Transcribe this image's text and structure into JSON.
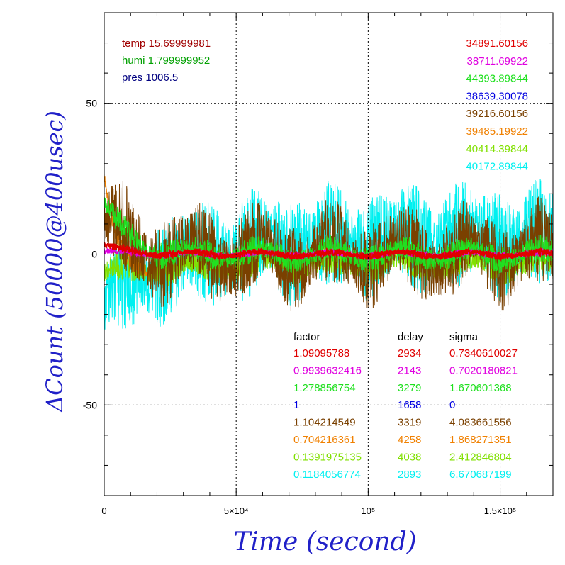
{
  "chart_data": {
    "type": "line",
    "xlabel": "Time (second)",
    "ylabel": "ΔCount (50000@400usec)",
    "xlim": [
      0,
      170000
    ],
    "ylim": [
      -80,
      80
    ],
    "x_ticks": [
      {
        "value": 0,
        "label": "0"
      },
      {
        "value": 50000,
        "label": "5×10⁴"
      },
      {
        "value": 100000,
        "label": "10⁵"
      },
      {
        "value": 150000,
        "label": "1.5×10⁵"
      }
    ],
    "y_ticks": [
      {
        "value": 50,
        "label": "50"
      },
      {
        "value": 0,
        "label": "0"
      },
      {
        "value": -50,
        "label": "-50"
      }
    ],
    "grid": true,
    "env": [
      {
        "label": "temp",
        "value": "15.69999981",
        "color": "#a00000"
      },
      {
        "label": "humi",
        "value": "1.799999952",
        "color": "#00a000"
      },
      {
        "label": "pres",
        "value": "1006.5",
        "color": "#000080"
      }
    ],
    "table_headers": {
      "factor": "factor",
      "delay": "delay",
      "sigma": "sigma"
    },
    "series": [
      {
        "color": "#e00000",
        "count": "34891.60156",
        "factor": "1.09095788",
        "delay": "2934",
        "sigma": "0.7340610027",
        "start": 3,
        "osc": 0.7,
        "noise": 0.7
      },
      {
        "color": "#e000e0",
        "count": "38711.69922",
        "factor": "0.9939632416",
        "delay": "2143",
        "sigma": "0.7020180821",
        "start": 1,
        "osc": 0.6,
        "noise": 0.6
      },
      {
        "color": "#20e020",
        "count": "44393.89844",
        "factor": "1.278856754",
        "delay": "3279",
        "sigma": "1.670601368",
        "start": 18,
        "osc": 2,
        "noise": 2.5
      },
      {
        "color": "#0000e0",
        "count": "38639.30078",
        "factor": "1",
        "delay": "1658",
        "sigma": "0",
        "start": 0,
        "osc": 0,
        "noise": 0
      },
      {
        "color": "#7a4000",
        "count": "39216.60156",
        "factor": "1.104214549",
        "delay": "3319",
        "sigma": "4.083661556",
        "start": 12,
        "osc": 5,
        "noise": 8
      },
      {
        "color": "#f08000",
        "count": "39485.19922",
        "factor": "0.704216361",
        "delay": "4258",
        "sigma": "1.868271351",
        "start": 25,
        "osc": 0,
        "noise": 2
      },
      {
        "color": "#80e000",
        "count": "40414.39844",
        "factor": "0.1391975135",
        "delay": "4038",
        "sigma": "2.412846804",
        "start": -5,
        "osc": 2,
        "noise": 3
      },
      {
        "color": "#00f0f0",
        "count": "40172.89844",
        "factor": "0.1184056774",
        "delay": "2893",
        "sigma": "6.670687199",
        "start": -15,
        "osc": 3,
        "noise": 10
      }
    ]
  }
}
